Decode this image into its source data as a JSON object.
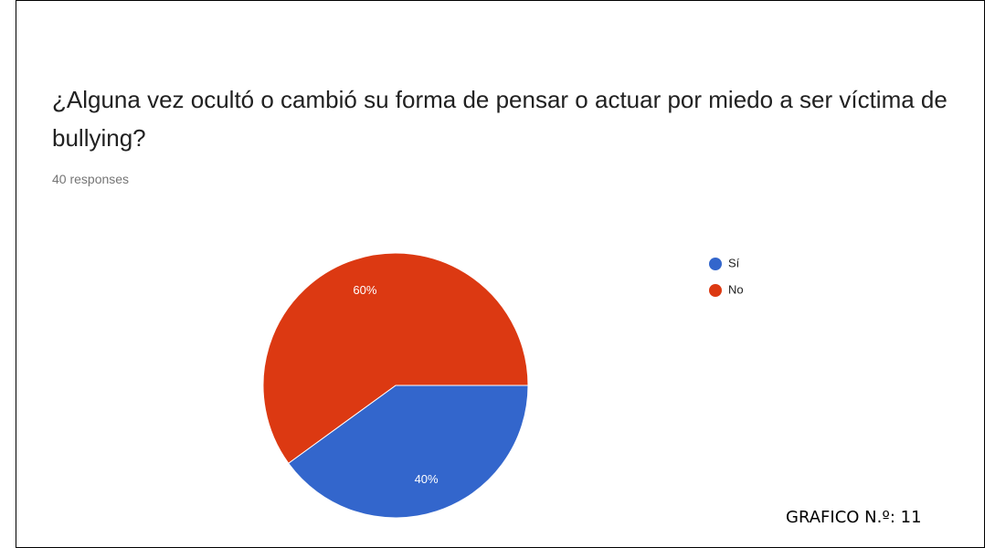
{
  "chart_data": {
    "type": "pie",
    "title": "¿Alguna vez ocultó o cambió su forma de pensar o actuar por miedo a ser víctima de bullying?",
    "subtitle": "40 responses",
    "categories": [
      "Sí",
      "No"
    ],
    "values": [
      40,
      60
    ],
    "value_labels": [
      "40%",
      "60%"
    ],
    "colors": [
      "#3366cc",
      "#dc3912"
    ],
    "annotation": "GRAFICO N.º: 11"
  }
}
